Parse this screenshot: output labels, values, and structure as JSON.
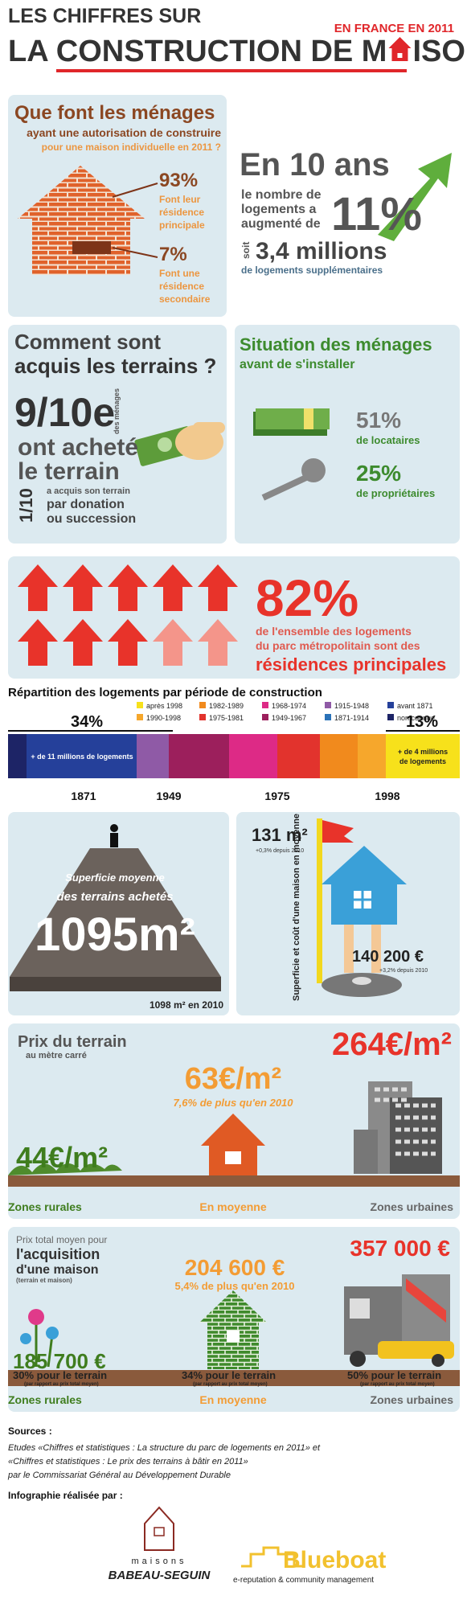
{
  "header": {
    "line1": "LES CHIFFRES SUR",
    "line2": "LA CONSTRUCTION DE M",
    "line2_end": "ISONS",
    "tag": "EN FRANCE EN 2011"
  },
  "menages": {
    "title1": "Que font les ménages",
    "title2": "ayant une autorisation de construire",
    "title3": "pour une maison individuelle en 2011 ?",
    "stat1": {
      "value": "93%",
      "label": [
        "Font leur",
        "résidence",
        "principale"
      ]
    },
    "stat2": {
      "value": "7%",
      "label": [
        "Font une",
        "résidence",
        "secondaire"
      ]
    }
  },
  "growth": {
    "lead": "En 10 ans",
    "lines": [
      "le nombre de",
      "logements a",
      "augmenté de"
    ],
    "pct": "11%",
    "soit": "soit",
    "millions": "3,4 millions",
    "sub": "de logements supplémentaires"
  },
  "terrains": {
    "title1": "Comment sont",
    "title2": "acquis les terrains ?",
    "big": "9/10e",
    "side": "des ménages",
    "l1": "ont acheté",
    "l2": "le terrain",
    "small": "1/10",
    "s1": "a acquis son terrain",
    "s2": "par donation",
    "s3": "ou succession"
  },
  "situation": {
    "title1": "Situation des ménages",
    "title2": "avant de s'installer",
    "p1": "51%",
    "l1": "de locataires",
    "p2": "25%",
    "l2": "de propriétaires"
  },
  "principales": {
    "pct": "82%",
    "l1": "de l'ensemble des logements",
    "l2": "du parc métropolitain sont des",
    "l3": "résidences principales"
  },
  "repartition": {
    "title": "Répartition des logements par période de construction",
    "legend": [
      {
        "name": "après 1998",
        "color": "#f7e11b"
      },
      {
        "name": "1990-1998",
        "color": "#f6a72c"
      },
      {
        "name": "1982-1989",
        "color": "#f18a1d"
      },
      {
        "name": "1975-1981",
        "color": "#e2332d"
      },
      {
        "name": "1968-1974",
        "color": "#dd2a86"
      },
      {
        "name": "1949-1967",
        "color": "#9c1f5c"
      },
      {
        "name": "1915-1948",
        "color": "#8f5aa6"
      },
      {
        "name": "1871-1914",
        "color": "#2a72b8"
      },
      {
        "name": "avant 1871",
        "color": "#25409a"
      },
      {
        "name": "non connue",
        "color": "#1d2466"
      }
    ],
    "left_pct": "34%",
    "right_pct": "13%",
    "left_note": "+ de 11 millions de logements",
    "right_note": [
      "+ de 4 millions",
      "de logements"
    ],
    "years": [
      "1871",
      "1949",
      "1975",
      "1998"
    ]
  },
  "superficie": {
    "l1": "Superficie moyenne",
    "l2": "des terrains achetés",
    "value": "1095m²",
    "note": "1098 m² en 2010"
  },
  "maison": {
    "area": "131 m²",
    "area_note": "+0,3% depuis 2010",
    "vertical": "Superficie et coût d'une maison en moyenne",
    "cost": "140 200 €",
    "cost_note": "+3,2% depuis 2010"
  },
  "prix_terrain": {
    "title": "Prix du terrain",
    "subtitle": "au mètre carré",
    "rural": "44€/m²",
    "moyenne": "63€/m²",
    "moyenne_note": "7,6% de plus qu'en 2010",
    "urbain": "264€/m²",
    "labels": [
      "Zones rurales",
      "En moyenne",
      "Zones urbaines"
    ]
  },
  "prix_total": {
    "t1": "Prix total moyen pour",
    "t2": "l'acquisition",
    "t3": "d'une maison",
    "t4": "(terrain et maison)",
    "rural": "185 700 €",
    "moyenne": "204 600 €",
    "moyenne_note": "5,4% de plus qu'en 2010",
    "urbain": "357 000 €",
    "shares": [
      {
        "pct": "30% pour le terrain",
        "note": "(par rapport au prix total moyen)"
      },
      {
        "pct": "34% pour le terrain",
        "note": "(par rapport au prix total moyen)"
      },
      {
        "pct": "50% pour le terrain",
        "note": "(par rapport au prix total moyen)"
      }
    ],
    "labels": [
      "Zones rurales",
      "En moyenne",
      "Zones urbaines"
    ]
  },
  "sources": {
    "title": "Sources :",
    "lines": [
      "Etudes «Chiffres et statistiques : La structure du parc de logements en 2011» et",
      "«Chiffres et statistiques : Le prix des terrains à bâtir en 2011»",
      "par le Commissariat Général au Développement Durable"
    ],
    "credit": "Infographie réalisée par :",
    "logo1a": "maisons",
    "logo1b": "BABEAU-SEGUIN",
    "logo2": "Blueboat",
    "logo2sub": "e-reputation & community management"
  }
}
